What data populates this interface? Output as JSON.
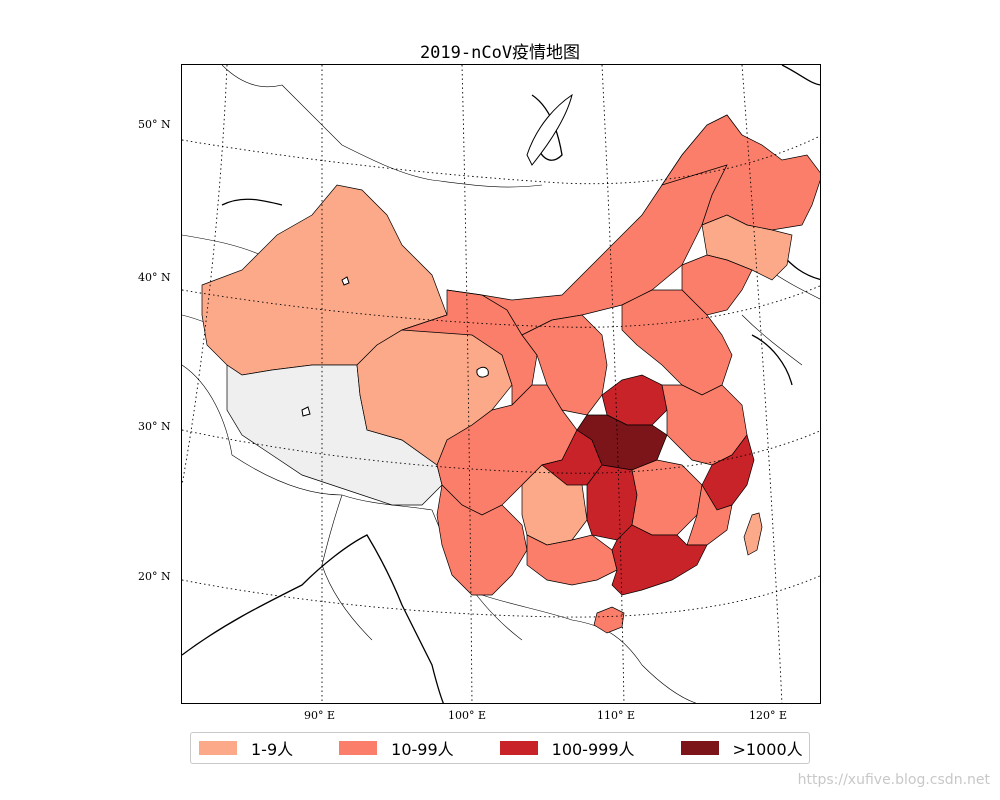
{
  "title": "2019-nCoV疫情地图",
  "latitude_labels": [
    "50° N",
    "40° N",
    "30° N",
    "20° N"
  ],
  "longitude_labels": [
    "90° E",
    "100° E",
    "110° E",
    "120° E"
  ],
  "legend": [
    {
      "label": "1-9人",
      "color": "#fca98a"
    },
    {
      "label": "10-99人",
      "color": "#fb7e6a"
    },
    {
      "label": "100-999人",
      "color": "#c9232a"
    },
    {
      "label": ">1000人",
      "color": "#7b1519"
    }
  ],
  "no_data_color": "#efefef",
  "provinces": [
    {
      "name": "新疆",
      "level": 1
    },
    {
      "name": "西藏",
      "level": 0
    },
    {
      "name": "青海",
      "level": 1
    },
    {
      "name": "甘肃",
      "level": 2
    },
    {
      "name": "内蒙古",
      "level": 2
    },
    {
      "name": "黑龙江",
      "level": 2
    },
    {
      "name": "吉林",
      "level": 1
    },
    {
      "name": "辽宁",
      "level": 2
    },
    {
      "name": "四川",
      "level": 2
    },
    {
      "name": "云南",
      "level": 2
    },
    {
      "name": "贵州",
      "level": 1
    },
    {
      "name": "重庆",
      "level": 3
    },
    {
      "name": "河南",
      "level": 3
    },
    {
      "name": "湖北",
      "level": 4
    },
    {
      "name": "湖南",
      "level": 3
    },
    {
      "name": "江西",
      "level": 2
    },
    {
      "name": "浙江",
      "level": 3
    },
    {
      "name": "广东",
      "level": 3
    },
    {
      "name": "广西",
      "level": 2
    },
    {
      "name": "海南",
      "level": 2
    },
    {
      "name": "台湾",
      "level": 1
    }
  ],
  "watermark": "https://xufive.blog.csdn.net"
}
